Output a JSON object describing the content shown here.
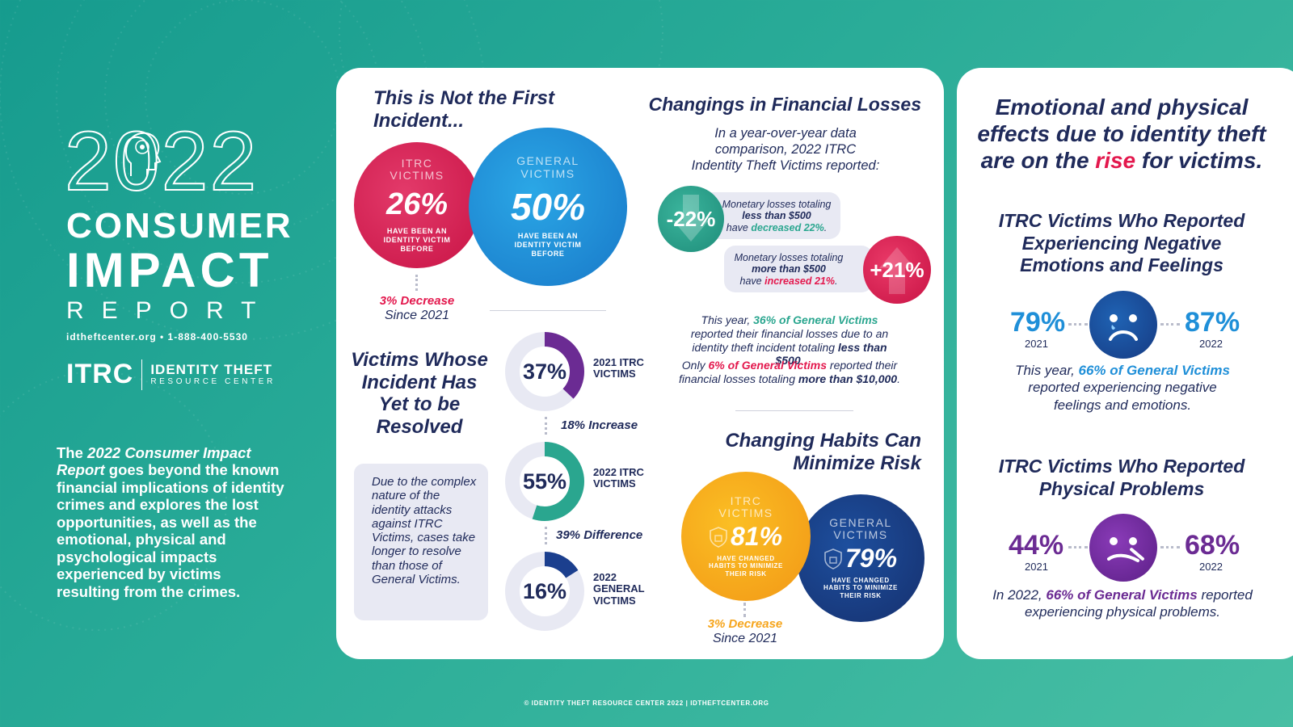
{
  "left": {
    "year": "2022",
    "title_line1": "CONSUMER",
    "title_line2": "IMPACT",
    "title_line3": "REPORT",
    "contact": "idtheftcenter.org  •  1-888-400-5530",
    "logo_mark": "ITRC",
    "logo_name": "IDENTITY THEFT",
    "logo_sub": "RESOURCE CENTER",
    "intro_pre": "The ",
    "intro_em": "2022 Consumer Impact Report",
    "intro_post": " goes beyond the known financial implications of identity crimes and explores the lost opportunities, as well as the emotional, physical and psychological impacts experienced by victims resulting from the crimes."
  },
  "first_incident": {
    "heading": "This is Not the First Incident...",
    "itrc": {
      "label": "ITRC VICTIMS",
      "pct": "26%",
      "small": "HAVE BEEN AN IDENTITY VICTIM BEFORE"
    },
    "general": {
      "label": "GENERAL VICTIMS",
      "pct": "50%",
      "small": "HAVE BEEN AN IDENTITY VICTIM BEFORE"
    },
    "change": "3% Decrease",
    "since": "Since 2021"
  },
  "unresolved": {
    "heading": "Victims Whose Incident Has Yet to be Resolved",
    "note": "Due to the complex nature of the identity attacks against ITRC Victims, cases take longer to resolve than those of General Victims.",
    "donuts": [
      {
        "pct": "37%",
        "value": 37,
        "label": "2021 ITRC VICTIMS",
        "color": "#6b2b93"
      },
      {
        "pct": "55%",
        "value": 55,
        "label": "2022 ITRC VICTIMS",
        "color": "#2aa68f"
      },
      {
        "pct": "16%",
        "value": 16,
        "label": "2022 GENERAL VICTIMS",
        "color": "#1b3f8e"
      }
    ],
    "between1": "18% Increase",
    "between2": "39% Difference"
  },
  "financial": {
    "heading": "Changings in Financial Losses",
    "intro": "In a year-over-year data comparison, 2022 ITRC Indentity Theft Victims reported:",
    "minus": {
      "badge": "-22%",
      "line1": "Monetary losses totaling",
      "line2": "less than $500",
      "line3_pre": "have ",
      "line3_hl": "decreased 22%",
      "line3_post": "."
    },
    "plus": {
      "badge": "+21%",
      "line1": "Monetary losses totaling",
      "line2": "more than $500",
      "line3_pre": "have ",
      "line3_hl": "increased 21%",
      "line3_post": "."
    },
    "p1_pre": "This year, ",
    "p1_hl": "36% of General Victims",
    "p1_mid": " reported their financial losses due to an identity theft incident totaling ",
    "p1_bold": "less than $500",
    "p1_post": ".",
    "p2_pre": "Only ",
    "p2_hl": "6% of General Victims",
    "p2_mid": " reported their financial losses totaling ",
    "p2_bold": "more than $10,000",
    "p2_post": "."
  },
  "habits": {
    "heading": "Changing Habits Can Minimize Risk",
    "itrc": {
      "label": "ITRC VICTIMS",
      "pct": "81%",
      "small": "HAVE CHANGED HABITS TO MINIMIZE THEIR RISK"
    },
    "general": {
      "label": "GENERAL VICTIMS",
      "pct": "79%",
      "small": "HAVE CHANGED HABITS TO MINIMIZE THEIR RISK"
    },
    "change": "3% Decrease",
    "since": "Since 2021"
  },
  "emotional": {
    "heading_pre": "Emotional and physical effects due to identity theft are on the ",
    "heading_hl": "rise",
    "heading_post": " for victims.",
    "neg": {
      "heading": "ITRC Victims Who Reported Experiencing Negative Emotions and Feelings",
      "left_pct": "79%",
      "left_year": "2021",
      "right_pct": "87%",
      "right_year": "2022",
      "note_pre": "This year, ",
      "note_hl": "66% of General Victims",
      "note_post": " reported experiencing negative feelings and emotions."
    },
    "phys": {
      "heading": "ITRC Victims Who Reported Physical Problems",
      "left_pct": "44%",
      "left_year": "2021",
      "right_pct": "68%",
      "right_year": "2022",
      "note_pre": "In 2022, ",
      "note_hl": "66% of General Victims",
      "note_post": " reported experiencing physical problems."
    }
  },
  "footer": "© IDENTITY THEFT RESOURCE CENTER 2022  |  IDTHEFTCENTER.ORG",
  "colors": {
    "teal": "#2aa68f",
    "red": "#e3184d",
    "blue": "#1f8fd8",
    "navy": "#1f2a5a",
    "purple": "#6b2b93",
    "orange": "#f6a51c"
  }
}
